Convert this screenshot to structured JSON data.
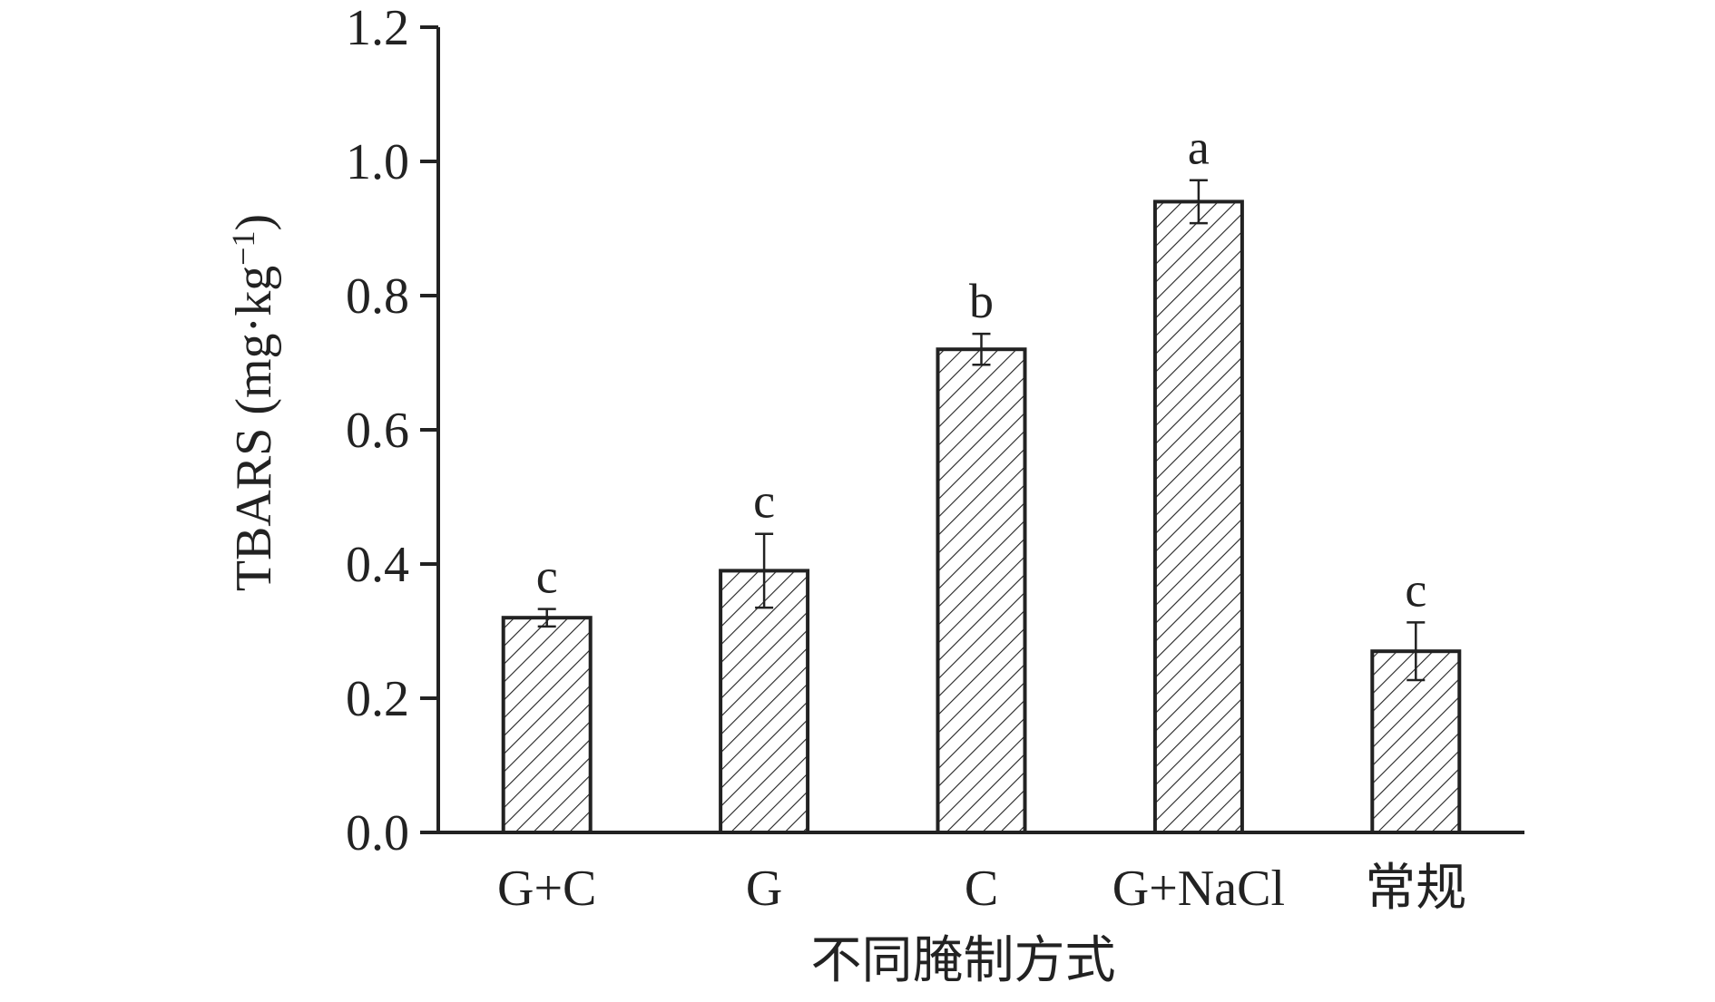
{
  "chart_data": {
    "type": "bar",
    "title": "",
    "xlabel": "不同腌制方式",
    "ylabel": "TBARS (mg·kg",
    "ylabel_superscript": "−1",
    "ylabel_close": ")",
    "categories": [
      "G+C",
      "G",
      "C",
      "G+NaCl",
      "常规"
    ],
    "series": [
      {
        "values": [
          0.32,
          0.39,
          0.72,
          0.94,
          0.27
        ],
        "errors": [
          0.013,
          0.055,
          0.023,
          0.032,
          0.043
        ],
        "significance": [
          "c",
          "c",
          "b",
          "a",
          "c"
        ]
      }
    ],
    "ylim": [
      0,
      1.2
    ],
    "yticks": [
      "0.0",
      "0.2",
      "0.4",
      "0.6",
      "0.8",
      "1.0",
      "1.2"
    ],
    "ytick_values": [
      0,
      0.2,
      0.4,
      0.6,
      0.8,
      1.0,
      1.2
    ],
    "bar_fill": "hatched",
    "colors": {
      "ink": "#222222",
      "background": "#ffffff"
    },
    "grid": false,
    "legend": "none"
  }
}
